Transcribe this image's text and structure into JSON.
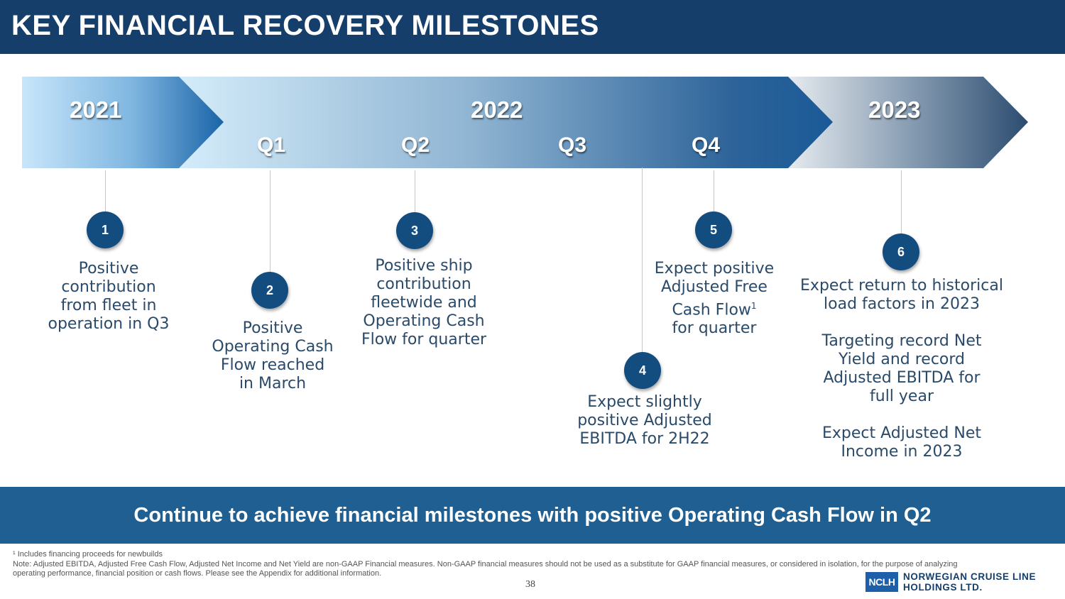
{
  "header": {
    "title": "KEY FINANCIAL RECOVERY MILESTONES"
  },
  "timeline": {
    "years": [
      "2021",
      "2022",
      "2023"
    ],
    "quarters": [
      "Q1",
      "Q2",
      "Q3",
      "Q4"
    ]
  },
  "milestones": [
    {
      "number": "1",
      "lines": [
        "Positive",
        "contribution",
        "from fleet in",
        "operation in Q3"
      ]
    },
    {
      "number": "2",
      "lines": [
        "Positive",
        "Operating Cash",
        "Flow reached",
        "in March"
      ]
    },
    {
      "number": "3",
      "lines": [
        "Positive ship",
        "contribution",
        "fleetwide and",
        "Operating Cash",
        "Flow for quarter"
      ]
    },
    {
      "number": "4",
      "lines": [
        "Expect slightly",
        "positive Adjusted",
        "EBITDA for 2H22"
      ]
    },
    {
      "number": "5",
      "lines": [
        "Expect positive",
        "Adjusted Free",
        "Cash Flow",
        "for quarter"
      ],
      "superscript": "1"
    },
    {
      "number": "6",
      "lines": [
        "Expect return to historical",
        "load factors in 2023",
        "",
        "Targeting record Net",
        "Yield and record",
        "Adjusted EBITDA for",
        "full year",
        "",
        "Expect Adjusted Net",
        "Income in 2023"
      ]
    }
  ],
  "banner": {
    "text": "Continue to achieve financial milestones with positive Operating Cash Flow in Q2"
  },
  "footnotes": {
    "note1": "¹ Includes financing proceeds for newbuilds",
    "note2": "Note: Adjusted EBITDA, Adjusted Free Cash Flow, Adjusted Net Income and Net Yield are non-GAAP Financial measures. Non-GAAP financial measures should not be used as a substitute for GAAP financial measures, or considered in isolation, for the purpose of analyzing operating performance, financial position or cash flows. Please see the Appendix for additional information."
  },
  "page_number": "38",
  "logo": {
    "mark": "NCLH",
    "line1": "NORWEGIAN CRUISE LINE",
    "line2": "HOLDINGS LTD."
  }
}
